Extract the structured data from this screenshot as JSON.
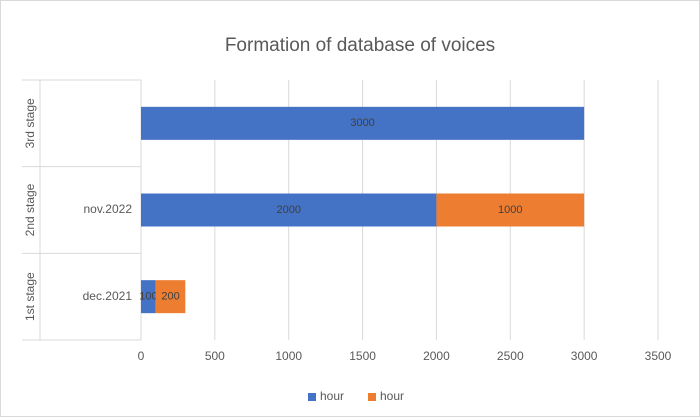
{
  "chart_data": {
    "type": "stacked_barh",
    "title": "Formation of database of voices",
    "groups": [
      "1st stage",
      "2nd stage",
      "3rd stage"
    ],
    "categories": [
      "dec.2021",
      "nov.2022",
      null
    ],
    "series": [
      {
        "name": "hour",
        "color": "#4472c4",
        "values": [
          100,
          2000,
          3000
        ]
      },
      {
        "name": "hour",
        "color": "#ed7d31",
        "values": [
          200,
          1000,
          null
        ]
      }
    ],
    "xlim": [
      0,
      3500
    ],
    "xticks": [
      0,
      500,
      1000,
      1500,
      2000,
      2500,
      3000,
      3500
    ],
    "grid": true,
    "legend": "bottom",
    "data_labels": true
  }
}
